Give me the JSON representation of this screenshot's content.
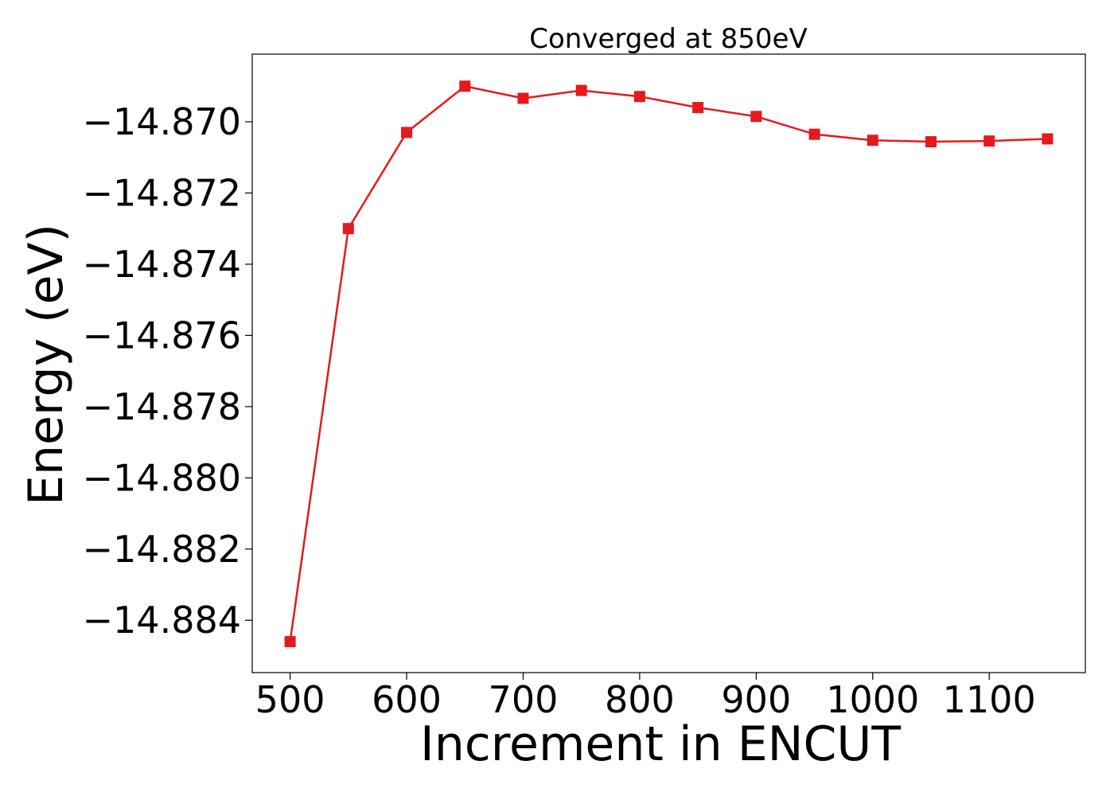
{
  "chart_data": {
    "type": "line",
    "title": "Converged at 850eV",
    "xlabel": "Increment in ENCUT",
    "ylabel": "Energy (eV)",
    "xlim": [
      467.5,
      1182.5
    ],
    "ylim": [
      -14.88547,
      -14.8681
    ],
    "xticks": [
      500,
      600,
      700,
      800,
      900,
      1000,
      1100
    ],
    "xtick_labels": [
      "500",
      "600",
      "700",
      "800",
      "900",
      "1000",
      "1100"
    ],
    "yticks": [
      -14.87,
      -14.872,
      -14.874,
      -14.876,
      -14.878,
      -14.88,
      -14.882,
      -14.884
    ],
    "ytick_labels": [
      "−14.870",
      "−14.872",
      "−14.874",
      "−14.876",
      "−14.878",
      "−14.880",
      "−14.882",
      "−14.884"
    ],
    "grid": false,
    "series": [
      {
        "color": "#e41a1c",
        "marker": "square",
        "x": [
          500,
          550,
          600,
          650,
          700,
          750,
          800,
          850,
          900,
          950,
          1000,
          1050,
          1100,
          1150
        ],
        "y": [
          -14.8846,
          -14.873,
          -14.8703,
          -14.869,
          -14.86934,
          -14.86912,
          -14.86929,
          -14.8696,
          -14.86985,
          -14.87035,
          -14.87052,
          -14.87056,
          -14.87054,
          -14.87048
        ]
      }
    ]
  }
}
